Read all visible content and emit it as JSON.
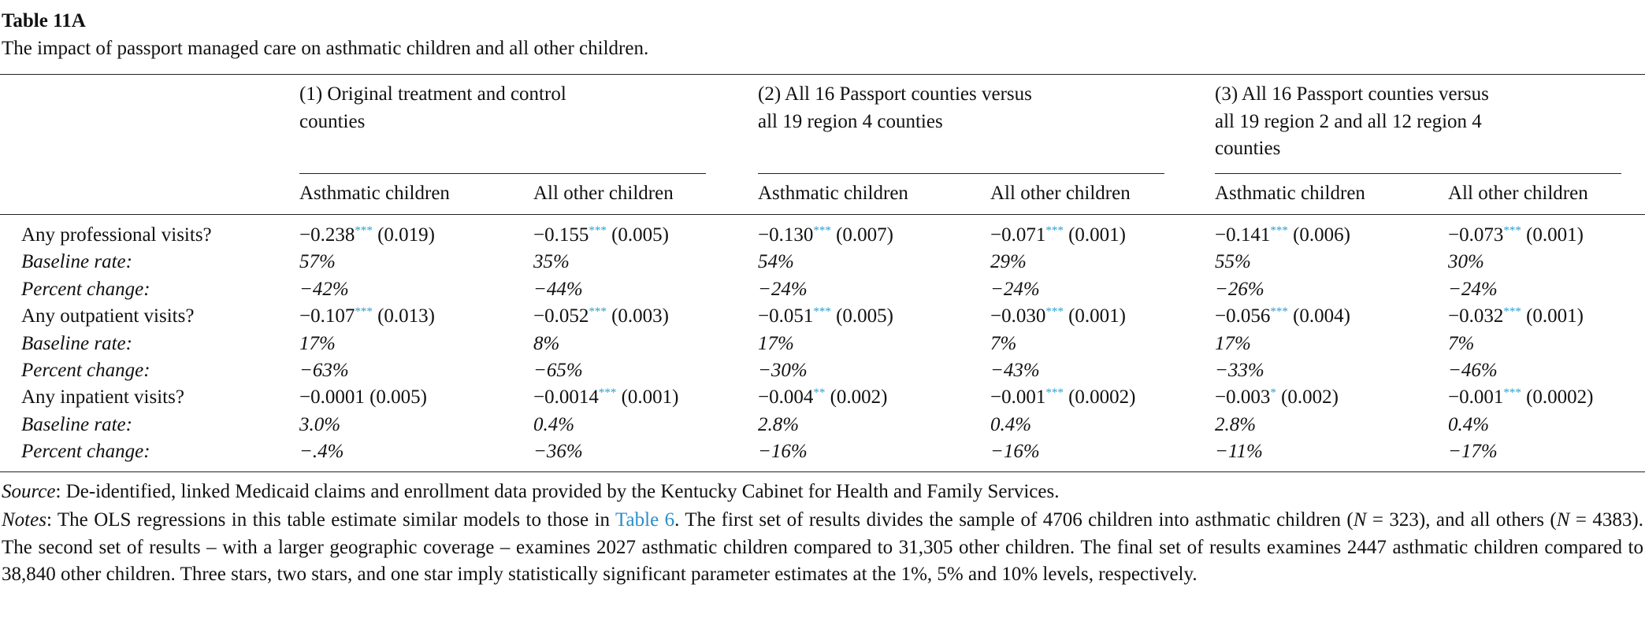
{
  "title": "Table 11A",
  "caption": "The impact of passport managed care on asthmatic children and all other children.",
  "groups": [
    {
      "lines": [
        "(1) Original treatment and control",
        "counties"
      ]
    },
    {
      "lines": [
        "(2) All 16 Passport counties versus",
        "all 19 region 4 counties"
      ]
    },
    {
      "lines": [
        "(3) All 16 Passport counties versus",
        "all 19 region 2 and all 12 region 4",
        "counties"
      ]
    }
  ],
  "subheaders": [
    "Asthmatic children",
    "All other children",
    "Asthmatic children",
    "All other children",
    "Asthmatic children",
    "All other children"
  ],
  "rows": [
    {
      "label": "Any professional visits?",
      "cells": [
        {
          "coef": "−0.238",
          "stars": "***",
          "se": "(0.019)"
        },
        {
          "coef": "−0.155",
          "stars": "***",
          "se": "(0.005)"
        },
        {
          "coef": "−0.130",
          "stars": "***",
          "se": "(0.007)"
        },
        {
          "coef": "−0.071",
          "stars": "***",
          "se": "(0.001)"
        },
        {
          "coef": "−0.141",
          "stars": "***",
          "se": "(0.006)"
        },
        {
          "coef": "−0.073",
          "stars": "***",
          "se": "(0.001)"
        }
      ]
    },
    {
      "label": "Baseline rate:",
      "cells": [
        "57%",
        "35%",
        "54%",
        "29%",
        "55%",
        "30%"
      ]
    },
    {
      "label": "Percent change:",
      "cells": [
        "−42%",
        "−44%",
        "−24%",
        "−24%",
        "−26%",
        "−24%"
      ]
    },
    {
      "label": "Any outpatient visits?",
      "cells": [
        {
          "coef": "−0.107",
          "stars": "***",
          "se": "(0.013)"
        },
        {
          "coef": "−0.052",
          "stars": "***",
          "se": "(0.003)"
        },
        {
          "coef": "−0.051",
          "stars": "***",
          "se": "(0.005)"
        },
        {
          "coef": "−0.030",
          "stars": "***",
          "se": "(0.001)"
        },
        {
          "coef": "−0.056",
          "stars": "***",
          "se": "(0.004)"
        },
        {
          "coef": "−0.032",
          "stars": "***",
          "se": "(0.001)"
        }
      ]
    },
    {
      "label": "Baseline rate:",
      "cells": [
        "17%",
        "8%",
        "17%",
        "7%",
        "17%",
        "7%"
      ]
    },
    {
      "label": "Percent change:",
      "cells": [
        "−63%",
        "−65%",
        "−30%",
        "−43%",
        "−33%",
        "−46%"
      ]
    },
    {
      "label": "Any inpatient visits?",
      "cells": [
        {
          "coef": "−0.0001",
          "se": "(0.005)"
        },
        {
          "coef": "−0.0014",
          "stars": "***",
          "se": "(0.001)"
        },
        {
          "coef": "−0.004",
          "stars": "**",
          "se": "(0.002)"
        },
        {
          "coef": "−0.001",
          "stars": "***",
          "se": "(0.0002)"
        },
        {
          "coef": "−0.003",
          "stars": "*",
          "se": "(0.002)"
        },
        {
          "coef": "−0.001",
          "stars": "***",
          "se": "(0.0002)"
        }
      ]
    },
    {
      "label": "Baseline rate:",
      "cells": [
        "3.0%",
        "0.4%",
        "2.8%",
        "0.4%",
        "2.8%",
        "0.4%"
      ]
    },
    {
      "label": "Percent change:",
      "cells": [
        "−.4%",
        "−36%",
        "−16%",
        "−16%",
        "−11%",
        "−17%"
      ]
    }
  ],
  "source": {
    "label": "Source",
    "text": ": De-identified, linked Medicaid claims and enrollment data provided by the Kentucky Cabinet for Health and Family Services."
  },
  "notes": {
    "label": "Notes",
    "parts": [
      ": The OLS regressions in this table estimate similar models to those in ",
      "Table 6",
      ". The first set of results divides the sample of 4706 children into asthmatic children (",
      "N",
      " = 323), and all others (",
      "N",
      " = 4383). The second set of results – with a larger geographic coverage – examines 2027 asthmatic children compared to 31,305 other children. The final set of results examines 2447 asthmatic children compared to 38,840 other children. Three stars, two stars, and one star imply statistically significant parameter estimates at the 1%, 5% and 10% levels, respectively."
    ]
  }
}
